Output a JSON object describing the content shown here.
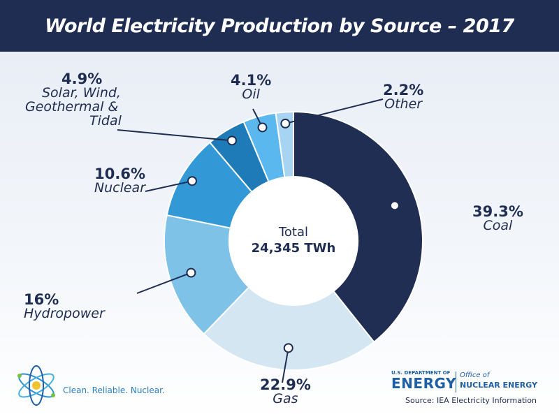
{
  "header": {
    "title": "World Electricity Production by Source – 2017"
  },
  "total": {
    "label": "Total",
    "value": "24,345 TWh"
  },
  "footer": {
    "tagline": "Clean. Reliable. Nuclear.",
    "doe_small": "U.S. DEPARTMENT OF",
    "doe_big": "ENERGY",
    "office_line1": "Office of",
    "office_line2": "NUCLEAR ENERGY",
    "source": "Source: IEA Electricity Information"
  },
  "colors": {
    "header_bg": "#1f2d52",
    "text": "#1f2d52",
    "coal": "#212e54",
    "gas": "#d3e6f2",
    "hydropower": "#7fc2e8",
    "nuclear": "#3399d6",
    "renewables": "#1f7bb7",
    "oil": "#5bb8ee",
    "other": "#a7d4f2"
  },
  "chart_data": {
    "type": "pie",
    "title": "World Electricity Production by Source – 2017",
    "categories": [
      "Coal",
      "Gas",
      "Hydropower",
      "Nuclear",
      "Solar, Wind, Geothermal & Tidal",
      "Oil",
      "Other"
    ],
    "values": [
      39.3,
      22.9,
      16,
      10.6,
      4.9,
      4.1,
      2.2
    ],
    "labels": [
      {
        "pct": "39.3%",
        "name": [
          "Coal"
        ]
      },
      {
        "pct": "22.9%",
        "name": [
          "Gas"
        ]
      },
      {
        "pct": "16%",
        "name": [
          "Hydropower"
        ]
      },
      {
        "pct": "10.6%",
        "name": [
          "Nuclear"
        ]
      },
      {
        "pct": "4.9%",
        "name": [
          "Solar, Wind,",
          "Geothermal &",
          "Tidal"
        ]
      },
      {
        "pct": "4.1%",
        "name": [
          "Oil"
        ]
      },
      {
        "pct": "2.2%",
        "name": [
          "Other"
        ]
      }
    ],
    "unit": "%",
    "donut": true
  }
}
